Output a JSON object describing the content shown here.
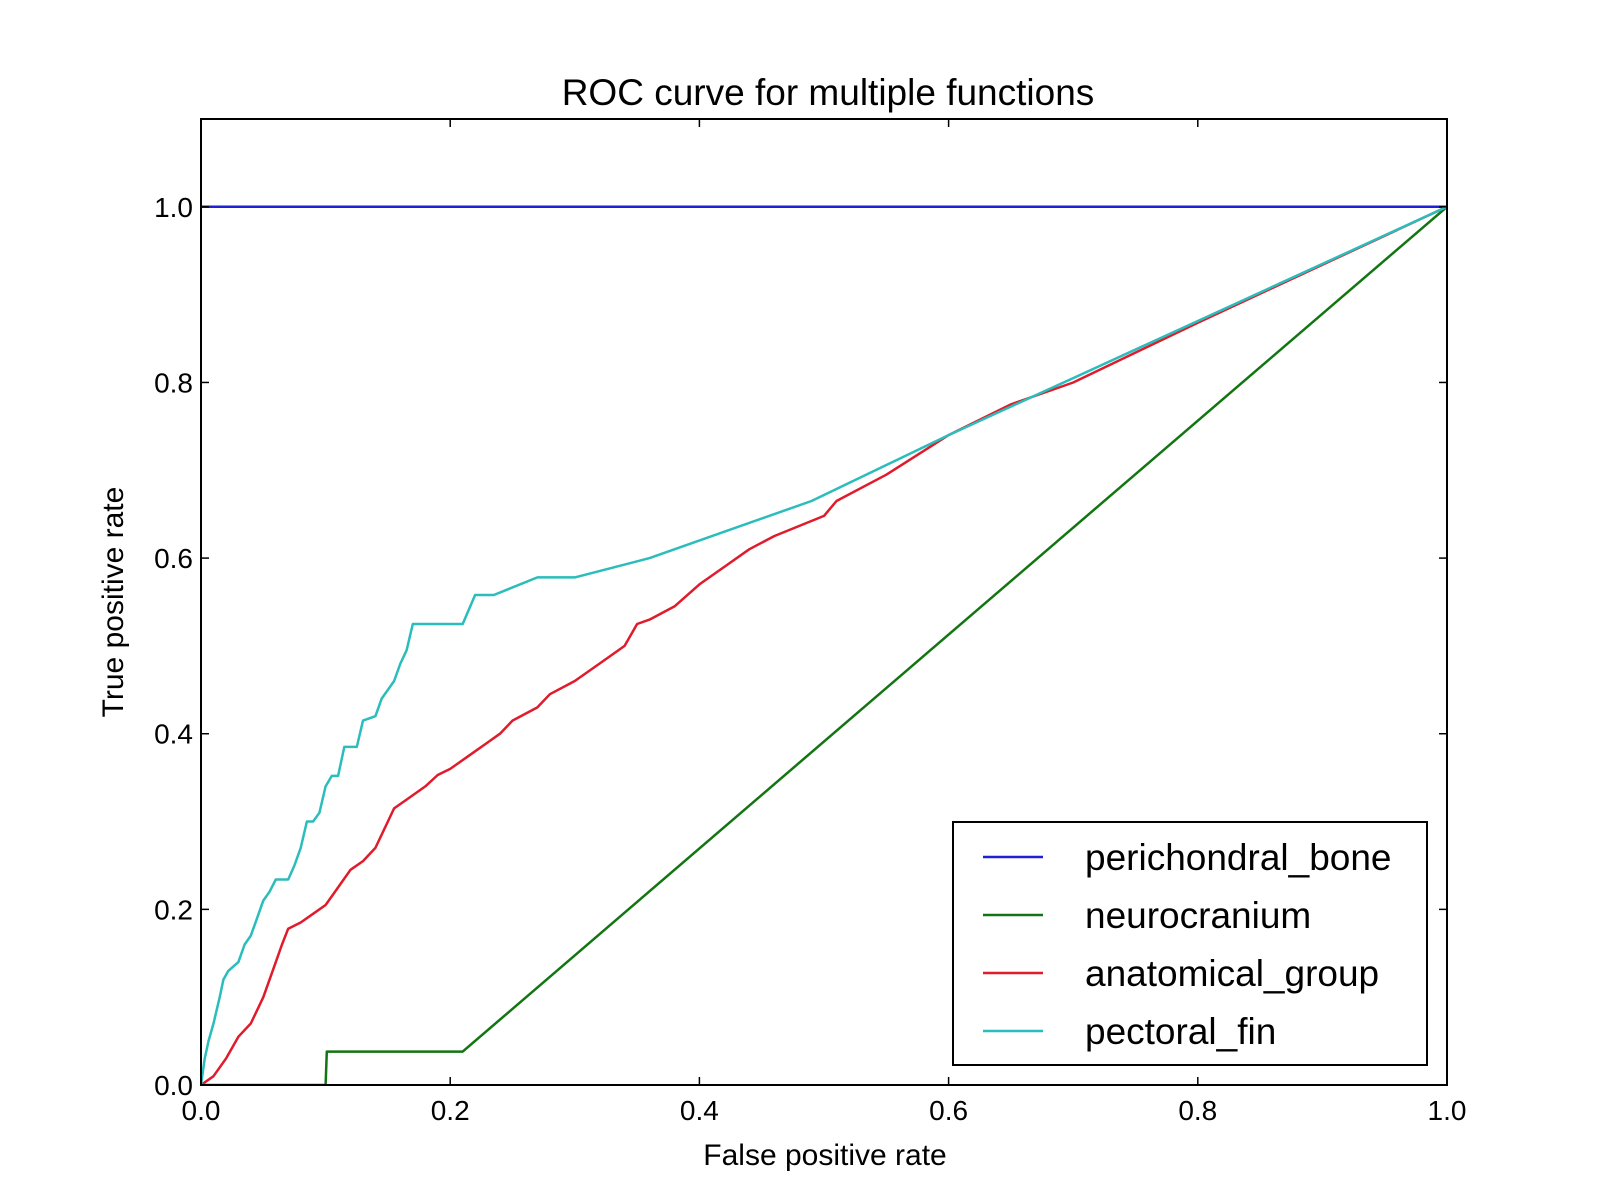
{
  "chart_data": {
    "type": "line",
    "title": "ROC curve for multiple functions",
    "xlabel": "False positive rate",
    "ylabel": "True positive rate",
    "xlim": [
      0.0,
      1.0
    ],
    "ylim": [
      0.0,
      1.1
    ],
    "xticks": [
      "0.0",
      "0.2",
      "0.4",
      "0.6",
      "0.8",
      "1.0"
    ],
    "yticks": [
      "0.0",
      "0.2",
      "0.4",
      "0.6",
      "0.8",
      "1.0"
    ],
    "legend_position": "bottom-right",
    "grid": false,
    "series": [
      {
        "name": "perichondral_bone",
        "color": "#1f1fd6",
        "points": [
          [
            0.0,
            1.0
          ],
          [
            1.0,
            1.0
          ]
        ]
      },
      {
        "name": "neurocranium",
        "color": "#127512",
        "points": [
          [
            0.0,
            0.0
          ],
          [
            0.1,
            0.0
          ],
          [
            0.101,
            0.038
          ],
          [
            0.21,
            0.038
          ],
          [
            1.0,
            1.0
          ]
        ]
      },
      {
        "name": "anatomical_group",
        "color": "#e01b2b",
        "points": [
          [
            0.0,
            0.0
          ],
          [
            0.01,
            0.01
          ],
          [
            0.02,
            0.03
          ],
          [
            0.03,
            0.055
          ],
          [
            0.04,
            0.07
          ],
          [
            0.05,
            0.1
          ],
          [
            0.06,
            0.14
          ],
          [
            0.065,
            0.16
          ],
          [
            0.07,
            0.178
          ],
          [
            0.08,
            0.185
          ],
          [
            0.09,
            0.195
          ],
          [
            0.1,
            0.205
          ],
          [
            0.11,
            0.225
          ],
          [
            0.12,
            0.245
          ],
          [
            0.13,
            0.255
          ],
          [
            0.14,
            0.27
          ],
          [
            0.15,
            0.3
          ],
          [
            0.155,
            0.315
          ],
          [
            0.165,
            0.325
          ],
          [
            0.18,
            0.34
          ],
          [
            0.19,
            0.353
          ],
          [
            0.2,
            0.36
          ],
          [
            0.215,
            0.375
          ],
          [
            0.23,
            0.39
          ],
          [
            0.24,
            0.4
          ],
          [
            0.25,
            0.415
          ],
          [
            0.27,
            0.43
          ],
          [
            0.28,
            0.445
          ],
          [
            0.3,
            0.46
          ],
          [
            0.32,
            0.48
          ],
          [
            0.34,
            0.5
          ],
          [
            0.35,
            0.525
          ],
          [
            0.36,
            0.53
          ],
          [
            0.38,
            0.545
          ],
          [
            0.4,
            0.57
          ],
          [
            0.42,
            0.59
          ],
          [
            0.44,
            0.61
          ],
          [
            0.46,
            0.625
          ],
          [
            0.5,
            0.648
          ],
          [
            0.51,
            0.665
          ],
          [
            0.55,
            0.695
          ],
          [
            0.6,
            0.74
          ],
          [
            0.65,
            0.775
          ],
          [
            0.7,
            0.8
          ],
          [
            0.8,
            0.868
          ],
          [
            1.0,
            1.0
          ]
        ]
      },
      {
        "name": "pectoral_fin",
        "color": "#2bbcbc",
        "points": [
          [
            0.0,
            0.0
          ],
          [
            0.003,
            0.03
          ],
          [
            0.006,
            0.05
          ],
          [
            0.01,
            0.07
          ],
          [
            0.015,
            0.1
          ],
          [
            0.018,
            0.12
          ],
          [
            0.022,
            0.13
          ],
          [
            0.03,
            0.14
          ],
          [
            0.035,
            0.16
          ],
          [
            0.04,
            0.17
          ],
          [
            0.045,
            0.19
          ],
          [
            0.05,
            0.21
          ],
          [
            0.055,
            0.22
          ],
          [
            0.06,
            0.234
          ],
          [
            0.07,
            0.234
          ],
          [
            0.075,
            0.25
          ],
          [
            0.08,
            0.27
          ],
          [
            0.085,
            0.3
          ],
          [
            0.09,
            0.3
          ],
          [
            0.095,
            0.31
          ],
          [
            0.1,
            0.34
          ],
          [
            0.105,
            0.352
          ],
          [
            0.11,
            0.352
          ],
          [
            0.115,
            0.385
          ],
          [
            0.125,
            0.385
          ],
          [
            0.13,
            0.415
          ],
          [
            0.14,
            0.42
          ],
          [
            0.145,
            0.44
          ],
          [
            0.15,
            0.45
          ],
          [
            0.155,
            0.46
          ],
          [
            0.16,
            0.48
          ],
          [
            0.165,
            0.495
          ],
          [
            0.17,
            0.525
          ],
          [
            0.21,
            0.525
          ],
          [
            0.22,
            0.558
          ],
          [
            0.235,
            0.558
          ],
          [
            0.27,
            0.578
          ],
          [
            0.3,
            0.578
          ],
          [
            0.36,
            0.6
          ],
          [
            0.49,
            0.665
          ],
          [
            0.6,
            0.74
          ],
          [
            0.7,
            0.805
          ],
          [
            1.0,
            1.0
          ]
        ]
      }
    ]
  }
}
